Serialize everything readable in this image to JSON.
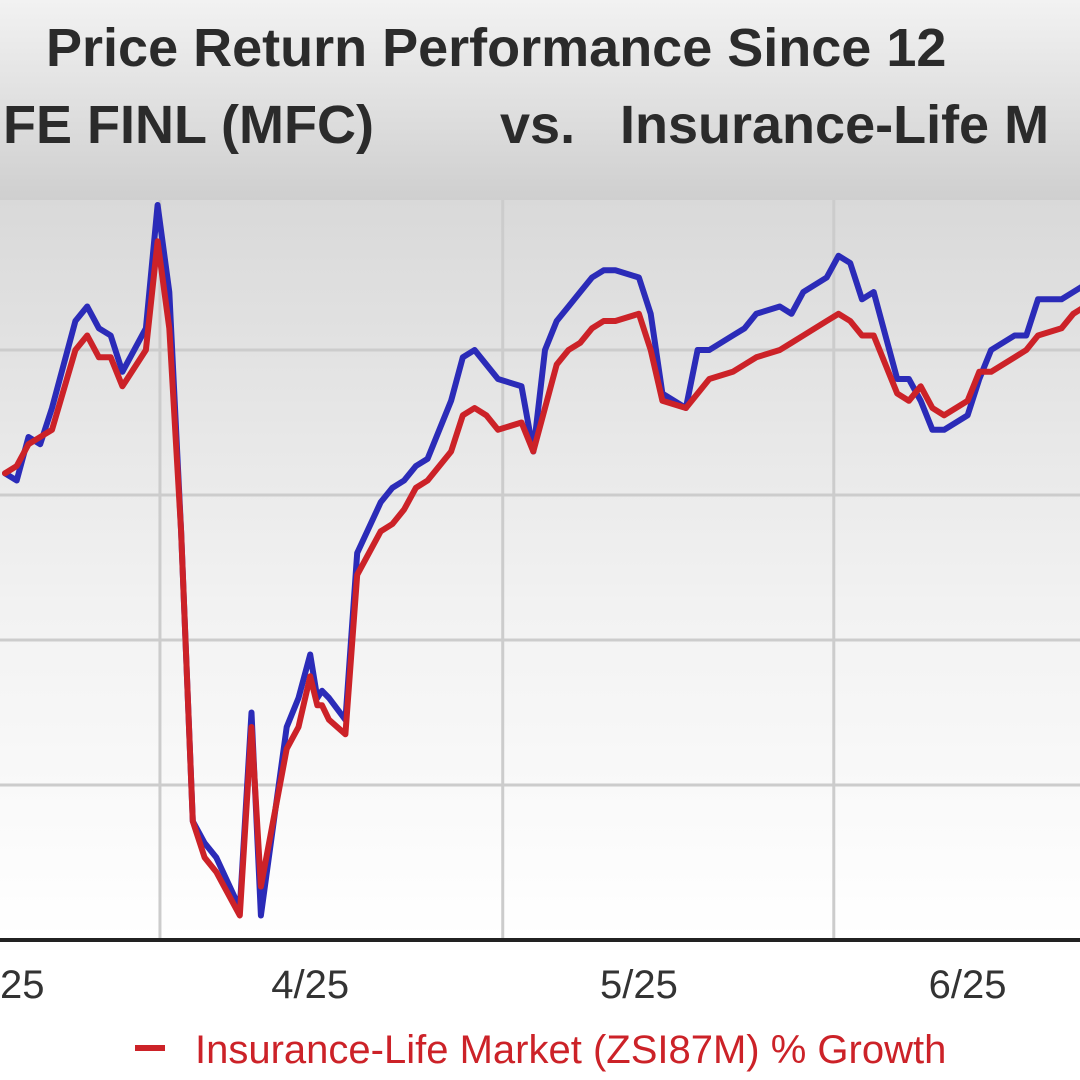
{
  "chart_data": {
    "type": "line",
    "title_line1": "Price Return Performance Since 12",
    "title_line2_left": "IFE FINL (MFC)",
    "title_vs": "vs.",
    "title_line2_right": "Insurance-Life M",
    "x_ticks": [
      "25",
      "4/25",
      "5/25",
      "6/25"
    ],
    "x_tick_values": [
      0.0,
      13.0,
      27.0,
      41.0
    ],
    "xlim": [
      0,
      46
    ],
    "ylim": [
      0,
      100
    ],
    "grid": true,
    "legend": {
      "position": "bottom",
      "entries": [
        {
          "series": "market",
          "label": "Insurance-Life Market (ZSI87M) % Growth"
        }
      ]
    },
    "colors": {
      "mfc": "#2b2bb8",
      "market": "#cc2228",
      "grid": "#cccccc",
      "axis": "#222222"
    },
    "series": [
      {
        "name": "MFC",
        "key": "mfc",
        "x": [
          0.0,
          0.5,
          1.0,
          1.5,
          2.0,
          3.0,
          3.5,
          4.0,
          4.5,
          5.0,
          6.0,
          6.5,
          7.0,
          7.5,
          8.0,
          8.5,
          9.0,
          10.0,
          10.5,
          10.9,
          12.0,
          12.5,
          13.0,
          13.3,
          13.5,
          13.8,
          14.5,
          15.0,
          16.0,
          16.5,
          17.0,
          17.5,
          18.0,
          19.0,
          19.5,
          20.0,
          20.5,
          21.0,
          22.0,
          22.5,
          23.0,
          23.5,
          24.0,
          24.5,
          25.0,
          25.5,
          26.0,
          27.0,
          27.5,
          28.0,
          29.0,
          29.5,
          30.0,
          31.0,
          31.5,
          32.0,
          33.0,
          33.5,
          34.0,
          35.0,
          35.5,
          36.0,
          36.5,
          37.0,
          38.0,
          38.5,
          39.0,
          39.5,
          40.0,
          41.0,
          41.5,
          42.0,
          43.0,
          43.5,
          44.0,
          45.0,
          45.5,
          46.0
        ],
        "y": [
          63,
          62,
          68,
          67,
          72,
          84,
          86,
          83,
          82,
          77,
          83,
          100,
          88,
          55,
          15,
          12,
          10,
          3,
          30,
          2,
          28,
          32,
          38,
          32,
          33,
          32,
          29,
          52,
          59,
          61,
          62,
          64,
          65,
          73,
          79,
          80,
          78,
          76,
          75,
          66,
          80,
          84,
          86,
          88,
          90,
          91,
          91,
          90,
          85,
          74,
          72,
          80,
          80,
          82,
          83,
          85,
          86,
          85,
          88,
          90,
          93,
          92,
          87,
          88,
          76,
          76,
          73,
          69,
          69,
          71,
          76,
          80,
          82,
          82,
          87,
          87,
          88,
          89
        ]
      },
      {
        "name": "Insurance-Life Market (ZSI87M)",
        "key": "market",
        "x": [
          0.0,
          0.5,
          1.0,
          1.5,
          2.0,
          3.0,
          3.5,
          4.0,
          4.5,
          5.0,
          6.0,
          6.5,
          7.0,
          7.5,
          8.0,
          8.5,
          9.0,
          10.0,
          10.5,
          10.9,
          12.0,
          12.5,
          13.0,
          13.3,
          13.5,
          13.8,
          14.5,
          15.0,
          16.0,
          16.5,
          17.0,
          17.5,
          18.0,
          19.0,
          19.5,
          20.0,
          20.5,
          21.0,
          22.0,
          22.5,
          23.0,
          23.5,
          24.0,
          24.5,
          25.0,
          25.5,
          26.0,
          27.0,
          27.5,
          28.0,
          29.0,
          29.5,
          30.0,
          31.0,
          31.5,
          32.0,
          33.0,
          33.5,
          34.0,
          35.0,
          35.5,
          36.0,
          36.5,
          37.0,
          38.0,
          38.5,
          39.0,
          39.5,
          40.0,
          41.0,
          41.5,
          42.0,
          43.0,
          43.5,
          44.0,
          45.0,
          45.5,
          46.0
        ],
        "y": [
          63,
          64,
          67,
          68,
          69,
          80,
          82,
          79,
          79,
          75,
          80,
          95,
          83,
          55,
          15,
          10,
          8,
          2,
          28,
          6,
          25,
          28,
          35,
          31,
          31,
          29,
          27,
          49,
          55,
          56,
          58,
          61,
          62,
          66,
          71,
          72,
          71,
          69,
          70,
          66,
          72,
          78,
          80,
          81,
          83,
          84,
          84,
          85,
          80,
          73,
          72,
          74,
          76,
          77,
          78,
          79,
          80,
          81,
          82,
          84,
          85,
          84,
          82,
          82,
          74,
          73,
          75,
          72,
          71,
          73,
          77,
          77,
          79,
          80,
          82,
          83,
          85,
          86
        ]
      }
    ]
  }
}
